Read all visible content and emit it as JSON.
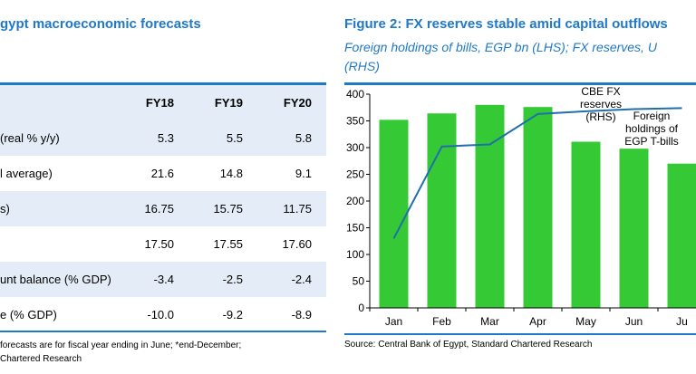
{
  "left_panel": {
    "title": "gypt macroeconomic forecasts",
    "table": {
      "columns": [
        "FY18",
        "FY19",
        "FY20"
      ],
      "rows": [
        {
          "label": "(real % y/y)",
          "values": [
            "5.3",
            "5.5",
            "5.8"
          ],
          "shaded": true
        },
        {
          "label": "l average)",
          "values": [
            "21.6",
            "14.8",
            "9.1"
          ],
          "shaded": false
        },
        {
          "label": "s)",
          "values": [
            "16.75",
            "15.75",
            "11.75"
          ],
          "shaded": true
        },
        {
          "label": "",
          "values": [
            "17.50",
            "17.55",
            "17.60"
          ],
          "shaded": false
        },
        {
          "label": "unt balance (% GDP)",
          "values": [
            "-3.4",
            "-2.5",
            "-2.4"
          ],
          "shaded": true
        },
        {
          "label": "e (% GDP)",
          "values": [
            "-10.0",
            "-9.2",
            "-8.9"
          ],
          "shaded": false
        }
      ]
    },
    "note_line1": "forecasts are for fiscal year ending in June; *end-December;",
    "note_line2": "Chartered Research"
  },
  "right_panel": {
    "title": "Figure 2: FX reserves stable amid capital outflows",
    "subtitle_line1": "Foreign holdings of bills, EGP bn (LHS); FX reserves, U",
    "subtitle_line2": "(RHS)",
    "source": "Source: Central Bank of Egypt, Standard Chartered Research"
  },
  "colors": {
    "accent": "#1f78c8",
    "bar": "#36c936",
    "line": "#1f6fae",
    "table_shade": "#e4edf7"
  },
  "chart_data": {
    "type": "bar",
    "categories": [
      "Jan",
      "Feb",
      "Mar",
      "Apr",
      "May",
      "Jun",
      "Ju"
    ],
    "ylim": [
      0,
      400
    ],
    "yticks": [
      0,
      50,
      100,
      150,
      200,
      250,
      300,
      350,
      400
    ],
    "series": [
      {
        "name": "Foreign holdings of EGP T-bills",
        "type": "bar",
        "values": [
          352,
          364,
          380,
          376,
          311,
          298,
          270
        ]
      },
      {
        "name": "CBE FX reserves (RHS)",
        "type": "line",
        "values": [
          130,
          302,
          306,
          363,
          368,
          372,
          374
        ]
      }
    ],
    "annotations": [
      {
        "series": 1,
        "lines": [
          "CBE FX",
          "reserves",
          "(RHS)"
        ]
      },
      {
        "series": 0,
        "lines": [
          "Foreign",
          "holdings of",
          "EGP T-bills"
        ]
      }
    ],
    "grid": false
  }
}
